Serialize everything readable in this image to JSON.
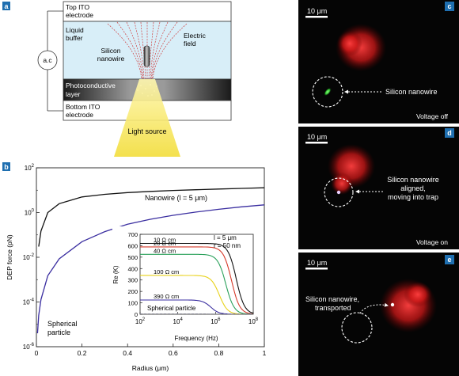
{
  "panel_a": {
    "letter": "a",
    "top_ito": [
      "Top ITO",
      "electrode"
    ],
    "liquid_buffer": [
      "Liquid",
      "buffer"
    ],
    "ac_label": "a.c",
    "electric_field": [
      "Electric",
      "field"
    ],
    "silicon_nanowire": [
      "Silicon",
      "nanowire"
    ],
    "photoconductive": [
      "Photoconductive",
      "layer"
    ],
    "bottom_ito": [
      "Bottom ITO",
      "electrode"
    ],
    "light_source": "Light source",
    "colors": {
      "buffer": "#d8eef8",
      "layer_dark": "#2a2a2a",
      "beam": "#f2dd3a"
    }
  },
  "panel_b": {
    "letter": "b",
    "ylabel": "DEP force (pN)",
    "xlabel": "Radius (μm)",
    "y_tick_exponents": [
      "2",
      "0",
      "-2",
      "-4",
      "-6"
    ],
    "x_ticks": [
      "0",
      "0.2",
      "0.4",
      "0.6",
      "0.8",
      "1"
    ],
    "nanowire_label": "Nanowire (l = 5 μm)",
    "spherical_label": [
      "Spherical",
      "particle"
    ],
    "inset": {
      "ylabel": "Re (K)",
      "xlabel": "Frequency (Hz)",
      "y_ticks": [
        "700",
        "600",
        "500",
        "400",
        "300",
        "200",
        "100",
        "0"
      ],
      "x_tick_exponents": [
        "2",
        "4",
        "6",
        "8"
      ],
      "params": [
        "l = 5 μm",
        "r = 50 nm"
      ],
      "spherical_label": "Spherical particle"
    }
  },
  "chart_data": [
    {
      "type": "line",
      "xlabel": "Radius (μm)",
      "ylabel": "DEP force (pN)",
      "xlim": [
        0,
        1
      ],
      "ylim": [
        1e-06,
        100
      ],
      "yscale": "log",
      "series": [
        {
          "name": "Nanowire (l = 5 μm)",
          "color": "#111111",
          "x": [
            0.01,
            0.02,
            0.05,
            0.1,
            0.2,
            0.3,
            0.4,
            0.5,
            0.6,
            0.7,
            0.8,
            0.9,
            1.0
          ],
          "y": [
            0.03,
            0.15,
            1.0,
            2.5,
            5.0,
            6.5,
            7.8,
            8.8,
            9.7,
            10.5,
            11.3,
            12.0,
            12.8
          ]
        },
        {
          "name": "Spherical particle",
          "color": "#3a2ea0",
          "x": [
            0.005,
            0.01,
            0.02,
            0.05,
            0.1,
            0.2,
            0.3,
            0.4,
            0.5,
            0.6,
            0.7,
            0.8,
            0.9,
            1.0
          ],
          "y": [
            4e-06,
            2.5e-05,
            0.00013,
            0.0015,
            0.0085,
            0.05,
            0.14,
            0.3,
            0.5,
            0.75,
            1.05,
            1.4,
            1.8,
            2.2
          ]
        }
      ]
    },
    {
      "type": "line",
      "xlabel": "Frequency (Hz)",
      "ylabel": "Re (K)",
      "xscale": "log",
      "xlim": [
        100,
        100000000
      ],
      "ylim": [
        0,
        700
      ],
      "series": [
        {
          "name": "10 Ω cm",
          "color": "#111111",
          "plateau": 620,
          "cutoff_log": 7.1
        },
        {
          "name": "20 Ω cm",
          "color": "#d63a2a",
          "plateau": 590,
          "cutoff_log": 6.85
        },
        {
          "name": "40 Ω cm",
          "color": "#2aa05a",
          "plateau": 525,
          "cutoff_log": 6.55
        },
        {
          "name": "100 Ω cm",
          "color": "#e8d21a",
          "plateau": 340,
          "cutoff_log": 6.2
        },
        {
          "name": "390 Ω cm",
          "color": "#3a2ea0",
          "plateau": 125,
          "cutoff_log": 5.75
        },
        {
          "name": "Spherical particle",
          "color": "#7a7a8a",
          "plateau": 2,
          "cutoff_log": 6.0,
          "dashed": true
        }
      ]
    }
  ],
  "panel_c": {
    "letter": "c",
    "scale": "10 μm",
    "nanowire_label": "Silicon nanowire",
    "state": "Voltage off"
  },
  "panel_d": {
    "letter": "d",
    "scale": "10 μm",
    "nanowire_label": [
      "Silicon nanowire",
      "aligned,",
      "moving into trap"
    ],
    "state": "Voltage on"
  },
  "panel_e": {
    "letter": "e",
    "scale": "10 μm",
    "nanowire_label": [
      "Silicon nanowire,",
      "transported"
    ]
  }
}
